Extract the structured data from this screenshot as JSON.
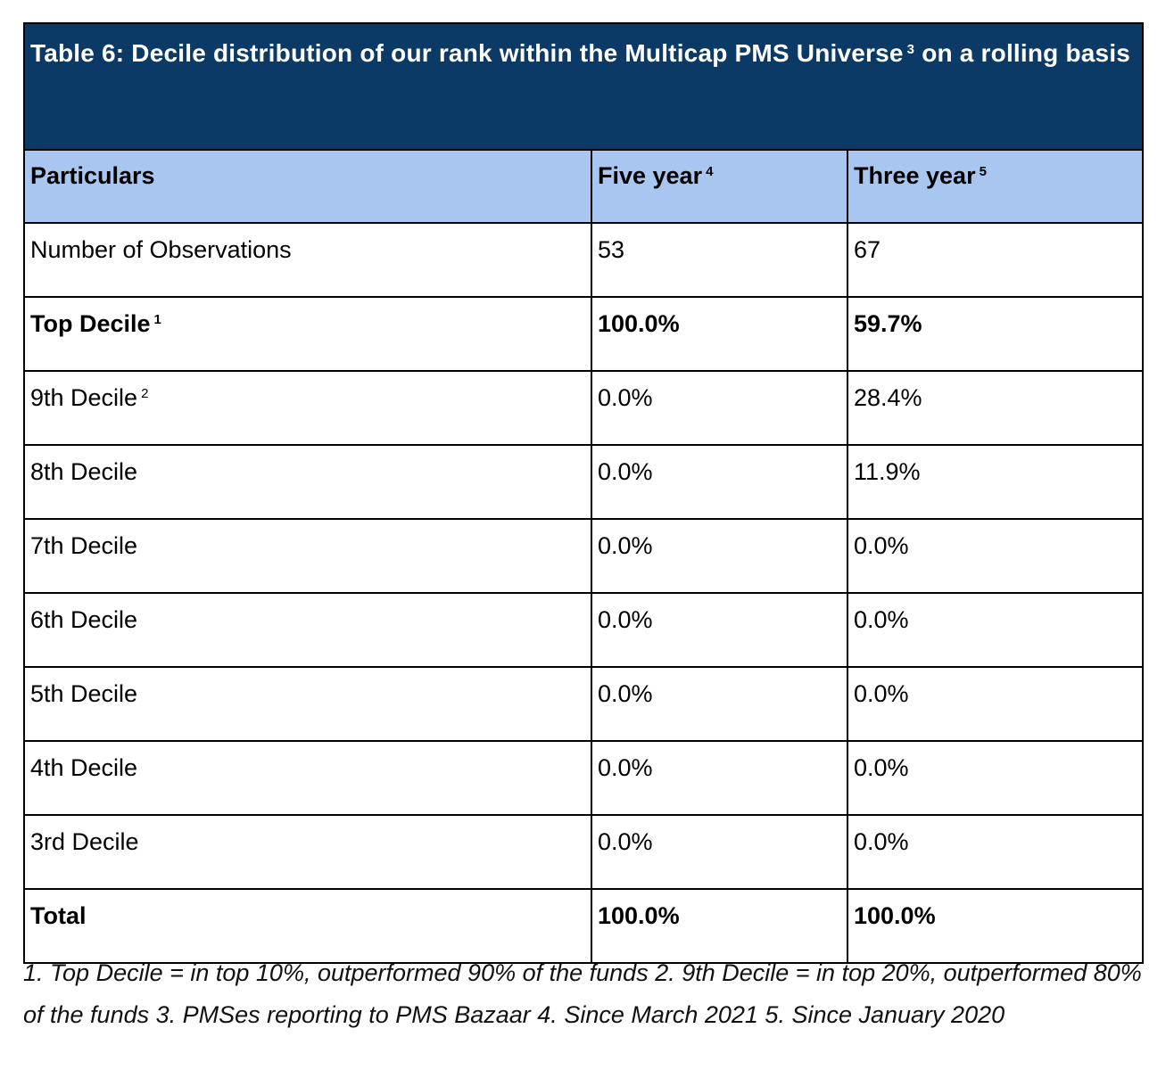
{
  "table": {
    "title": "Table 6: Decile distribution of our rank within the Multicap PMS Universe",
    "title_sup": "3",
    "title_end": "on a rolling basis",
    "header_bg": "#a8c6f0",
    "title_bg": "#0b3a66",
    "columns": [
      {
        "label": "Particulars",
        "sup": ""
      },
      {
        "label": "Five year",
        "sup": "4"
      },
      {
        "label": "Three year",
        "sup": "5"
      }
    ],
    "rows": [
      {
        "label": "Number of Observations",
        "sup": "",
        "five": "53",
        "three": "67",
        "bold": false
      },
      {
        "label": "Top Decile",
        "sup": "1",
        "five": "100.0%",
        "three": "59.7%",
        "bold": true
      },
      {
        "label": "9th Decile",
        "sup": "2",
        "five": "0.0%",
        "three": "28.4%",
        "bold": false
      },
      {
        "label": "8th Decile",
        "sup": "",
        "five": "0.0%",
        "three": "11.9%",
        "bold": false
      },
      {
        "label": "7th Decile",
        "sup": "",
        "five": "0.0%",
        "three": "0.0%",
        "bold": false
      },
      {
        "label": "6th Decile",
        "sup": "",
        "five": "0.0%",
        "three": "0.0%",
        "bold": false
      },
      {
        "label": "5th Decile",
        "sup": "",
        "five": "0.0%",
        "three": "0.0%",
        "bold": false
      },
      {
        "label": "4th Decile",
        "sup": "",
        "five": "0.0%",
        "three": "0.0%",
        "bold": false
      },
      {
        "label": "3rd Decile",
        "sup": "",
        "five": "0.0%",
        "three": "0.0%",
        "bold": false
      },
      {
        "label": "Total",
        "sup": "",
        "five": "100.0%",
        "three": "100.0%",
        "bold": true
      }
    ]
  },
  "footnote": "1. Top Decile = in top 10%,  outperformed 90% of the funds 2. 9th Decile = in top 20%, outperformed 80% of the funds 3. PMSes reporting to PMS Bazaar 4. Since March 2021 5. Since January 2020"
}
